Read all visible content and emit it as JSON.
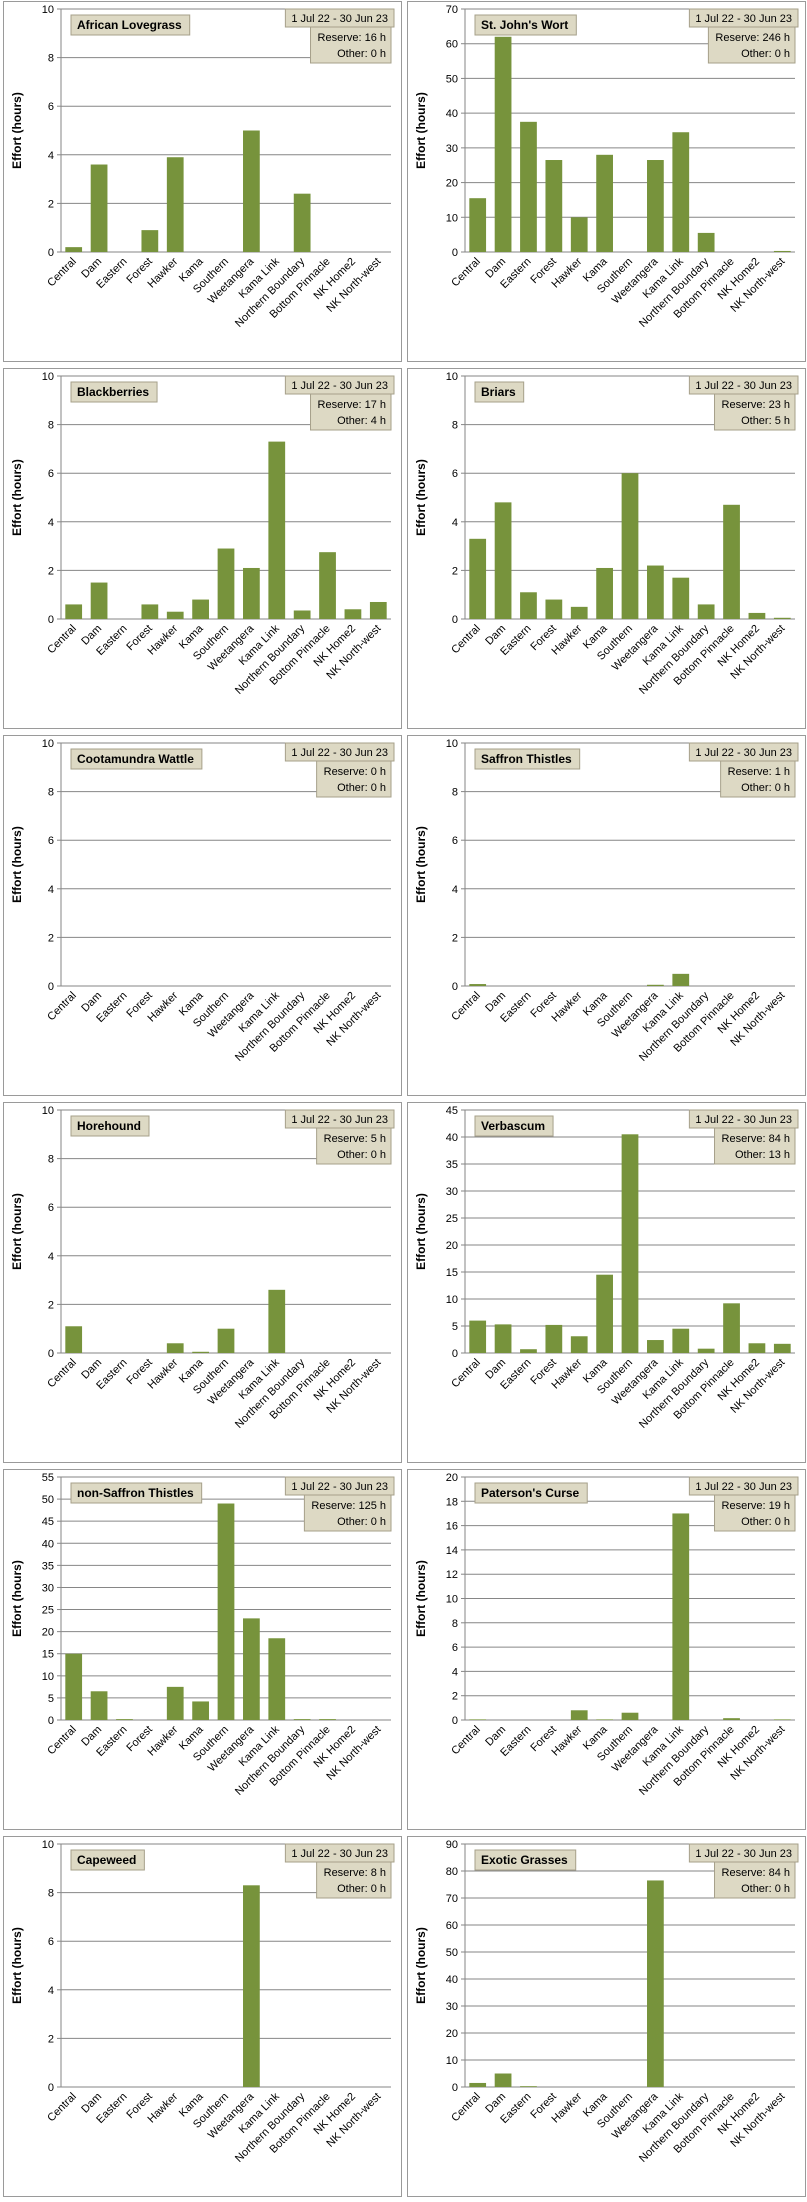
{
  "chart_data": [
    {
      "type": "bar",
      "title": "African Lovegrass",
      "subtitle": "1 Jul 22  -  30 Jun 23",
      "annotations": [
        "Reserve: 16 h",
        "Other: 0 h"
      ],
      "y_label": "Effort  (hours)",
      "color": "#77933c",
      "grid": true,
      "categories": [
        "Central",
        "Dam",
        "Eastern",
        "Forest",
        "Hawker",
        "Kama",
        "Southern",
        "Weetangera",
        "Kama Link",
        "Northern Boundary",
        "Bottom Pinnacle",
        "NK Home2",
        "NK North-west"
      ],
      "values": [
        0.2,
        3.6,
        0,
        0.9,
        3.9,
        0,
        0,
        5.0,
        0,
        2.4,
        0,
        0,
        0
      ],
      "ylim": [
        0,
        10
      ],
      "yticks": [
        0,
        2,
        4,
        6,
        8,
        10
      ]
    },
    {
      "type": "bar",
      "title": "St. John's Wort",
      "subtitle": "1 Jul 22  -  30 Jun 23",
      "annotations": [
        "Reserve: 246 h",
        "Other: 0 h"
      ],
      "y_label": "Effort  (hours)",
      "color": "#77933c",
      "grid": true,
      "categories": [
        "Central",
        "Dam",
        "Eastern",
        "Forest",
        "Hawker",
        "Kama",
        "Southern",
        "Weetangera",
        "Kama Link",
        "Northern Boundary",
        "Bottom Pinnacle",
        "NK Home2",
        "NK North-west"
      ],
      "values": [
        15.5,
        62,
        37.5,
        26.5,
        10,
        28,
        0,
        26.5,
        34.5,
        5.5,
        0,
        0,
        0.3
      ],
      "ylim": [
        0,
        70
      ],
      "yticks": [
        0,
        10,
        20,
        30,
        40,
        50,
        60,
        70
      ]
    },
    {
      "type": "bar",
      "title": "Blackberries",
      "subtitle": "1 Jul 22  -  30 Jun 23",
      "annotations": [
        "Reserve: 17 h",
        "Other: 4 h"
      ],
      "y_label": "Effort  (hours)",
      "color": "#77933c",
      "grid": true,
      "categories": [
        "Central",
        "Dam",
        "Eastern",
        "Forest",
        "Hawker",
        "Kama",
        "Southern",
        "Weetangera",
        "Kama Link",
        "Northern Boundary",
        "Bottom Pinnacle",
        "NK Home2",
        "NK North-west"
      ],
      "values": [
        0.6,
        1.5,
        0,
        0.6,
        0.3,
        0.8,
        2.9,
        2.1,
        7.3,
        0.35,
        2.75,
        0.4,
        0.7
      ],
      "ylim": [
        0,
        10
      ],
      "yticks": [
        0,
        2,
        4,
        6,
        8,
        10
      ]
    },
    {
      "type": "bar",
      "title": "Briars",
      "subtitle": "1 Jul 22  -  30 Jun 23",
      "annotations": [
        "Reserve: 23 h",
        "Other: 5 h"
      ],
      "y_label": "Effort  (hours)",
      "color": "#77933c",
      "grid": true,
      "categories": [
        "Central",
        "Dam",
        "Eastern",
        "Forest",
        "Hawker",
        "Kama",
        "Southern",
        "Weetangera",
        "Kama Link",
        "Northern Boundary",
        "Bottom Pinnacle",
        "NK Home2",
        "NK North-west"
      ],
      "values": [
        3.3,
        4.8,
        1.1,
        0.8,
        0.5,
        2.1,
        6.0,
        2.2,
        1.7,
        0.6,
        4.7,
        0.25,
        0.05
      ],
      "ylim": [
        0,
        10
      ],
      "yticks": [
        0,
        2,
        4,
        6,
        8,
        10
      ]
    },
    {
      "type": "bar",
      "title": "Cootamundra Wattle",
      "subtitle": "1 Jul 22  -  30 Jun 23",
      "annotations": [
        "Reserve: 0 h",
        "Other: 0 h"
      ],
      "y_label": "Effort  (hours)",
      "color": "#77933c",
      "grid": true,
      "categories": [
        "Central",
        "Dam",
        "Eastern",
        "Forest",
        "Hawker",
        "Kama",
        "Southern",
        "Weetangera",
        "Kama Link",
        "Northern Boundary",
        "Bottom Pinnacle",
        "NK Home2",
        "NK North-west"
      ],
      "values": [
        0,
        0,
        0,
        0,
        0,
        0,
        0,
        0,
        0,
        0,
        0,
        0,
        0
      ],
      "ylim": [
        0,
        10
      ],
      "yticks": [
        0,
        2,
        4,
        6,
        8,
        10
      ]
    },
    {
      "type": "bar",
      "title": "Saffron Thistles",
      "subtitle": "1 Jul 22  -  30 Jun 23",
      "annotations": [
        "Reserve: 1 h",
        "Other: 0 h"
      ],
      "y_label": "Effort  (hours)",
      "color": "#77933c",
      "grid": true,
      "categories": [
        "Central",
        "Dam",
        "Eastern",
        "Forest",
        "Hawker",
        "Kama",
        "Southern",
        "Weetangera",
        "Kama Link",
        "Northern Boundary",
        "Bottom Pinnacle",
        "NK Home2",
        "NK North-west"
      ],
      "values": [
        0.08,
        0,
        0,
        0,
        0,
        0,
        0,
        0.05,
        0.5,
        0,
        0,
        0,
        0
      ],
      "ylim": [
        0,
        10
      ],
      "yticks": [
        0,
        2,
        4,
        6,
        8,
        10
      ]
    },
    {
      "type": "bar",
      "title": "Horehound",
      "subtitle": "1 Jul 22  -  30 Jun 23",
      "annotations": [
        "Reserve: 5 h",
        "Other: 0 h"
      ],
      "y_label": "Effort  (hours)",
      "color": "#77933c",
      "grid": true,
      "categories": [
        "Central",
        "Dam",
        "Eastern",
        "Forest",
        "Hawker",
        "Kama",
        "Southern",
        "Weetangera",
        "Kama Link",
        "Northern Boundary",
        "Bottom Pinnacle",
        "NK Home2",
        "NK North-west"
      ],
      "values": [
        1.1,
        0,
        0,
        0,
        0.4,
        0.05,
        1.0,
        0,
        2.6,
        0,
        0,
        0,
        0
      ],
      "ylim": [
        0,
        10
      ],
      "yticks": [
        0,
        2,
        4,
        6,
        8,
        10
      ]
    },
    {
      "type": "bar",
      "title": "Verbascum",
      "subtitle": "1 Jul 22  -  30 Jun 23",
      "annotations": [
        "Reserve: 84 h",
        "Other: 13 h"
      ],
      "y_label": "Effort  (hours)",
      "color": "#77933c",
      "grid": true,
      "categories": [
        "Central",
        "Dam",
        "Eastern",
        "Forest",
        "Hawker",
        "Kama",
        "Southern",
        "Weetangera",
        "Kama Link",
        "Northern Boundary",
        "Bottom Pinnacle",
        "NK Home2",
        "NK North-west"
      ],
      "values": [
        6,
        5.3,
        0.7,
        5.2,
        3.1,
        14.5,
        40.5,
        2.4,
        4.5,
        0.8,
        9.2,
        1.8,
        1.7
      ],
      "ylim": [
        0,
        45
      ],
      "yticks": [
        0,
        5,
        10,
        15,
        20,
        25,
        30,
        35,
        40,
        45
      ]
    },
    {
      "type": "bar",
      "title": "non-Saffron Thistles",
      "subtitle": "1 Jul 22  -  30 Jun 23",
      "annotations": [
        "Reserve: 125 h",
        "Other: 0 h"
      ],
      "y_label": "Effort  (hours)",
      "color": "#77933c",
      "grid": true,
      "categories": [
        "Central",
        "Dam",
        "Eastern",
        "Forest",
        "Hawker",
        "Kama",
        "Southern",
        "Weetangera",
        "Kama Link",
        "Northern Boundary",
        "Bottom Pinnacle",
        "NK Home2",
        "NK North-west"
      ],
      "values": [
        15,
        6.5,
        0.2,
        0,
        7.5,
        4.2,
        49,
        23,
        18.5,
        0.2,
        0.2,
        0,
        0
      ],
      "ylim": [
        0,
        55
      ],
      "yticks": [
        0,
        5,
        10,
        15,
        20,
        25,
        30,
        35,
        40,
        45,
        50,
        55
      ]
    },
    {
      "type": "bar",
      "title": "Paterson's Curse",
      "subtitle": "1 Jul 22  -  30 Jun 23",
      "annotations": [
        "Reserve: 19 h",
        "Other: 0 h"
      ],
      "y_label": "Effort  (hours)",
      "color": "#77933c",
      "grid": true,
      "categories": [
        "Central",
        "Dam",
        "Eastern",
        "Forest",
        "Hawker",
        "Kama",
        "Southern",
        "Weetangera",
        "Kama Link",
        "Northern Boundary",
        "Bottom Pinnacle",
        "NK Home2",
        "NK North-west"
      ],
      "values": [
        0.05,
        0,
        0,
        0,
        0.8,
        0.05,
        0.6,
        0,
        17,
        0,
        0.15,
        0,
        0.05
      ],
      "ylim": [
        0,
        20
      ],
      "yticks": [
        0,
        2,
        4,
        6,
        8,
        10,
        12,
        14,
        16,
        18,
        20
      ]
    },
    {
      "type": "bar",
      "title": "Capeweed",
      "subtitle": "1 Jul 22  -  30 Jun 23",
      "annotations": [
        "Reserve: 8 h",
        "Other: 0 h"
      ],
      "y_label": "Effort  (hours)",
      "color": "#77933c",
      "grid": true,
      "categories": [
        "Central",
        "Dam",
        "Eastern",
        "Forest",
        "Hawker",
        "Kama",
        "Southern",
        "Weetangera",
        "Kama Link",
        "Northern Boundary",
        "Bottom Pinnacle",
        "NK Home2",
        "NK North-west"
      ],
      "values": [
        0,
        0,
        0,
        0,
        0,
        0,
        0,
        8.3,
        0,
        0,
        0,
        0,
        0
      ],
      "ylim": [
        0,
        10
      ],
      "yticks": [
        0,
        2,
        4,
        6,
        8,
        10
      ]
    },
    {
      "type": "bar",
      "title": "Exotic Grasses",
      "subtitle": "1 Jul 22  -  30 Jun 23",
      "annotations": [
        "Reserve: 84 h",
        "Other: 0 h"
      ],
      "y_label": "Effort  (hours)",
      "color": "#77933c",
      "grid": true,
      "categories": [
        "Central",
        "Dam",
        "Eastern",
        "Forest",
        "Hawker",
        "Kama",
        "Southern",
        "Weetangera",
        "Kama Link",
        "Northern Boundary",
        "Bottom Pinnacle",
        "NK Home2",
        "NK North-west"
      ],
      "values": [
        1.5,
        5,
        0.3,
        0,
        0,
        0,
        0,
        76.5,
        0,
        0,
        0,
        0,
        0
      ],
      "ylim": [
        0,
        90
      ],
      "yticks": [
        0,
        10,
        20,
        30,
        40,
        50,
        60,
        70,
        80,
        90
      ]
    }
  ]
}
